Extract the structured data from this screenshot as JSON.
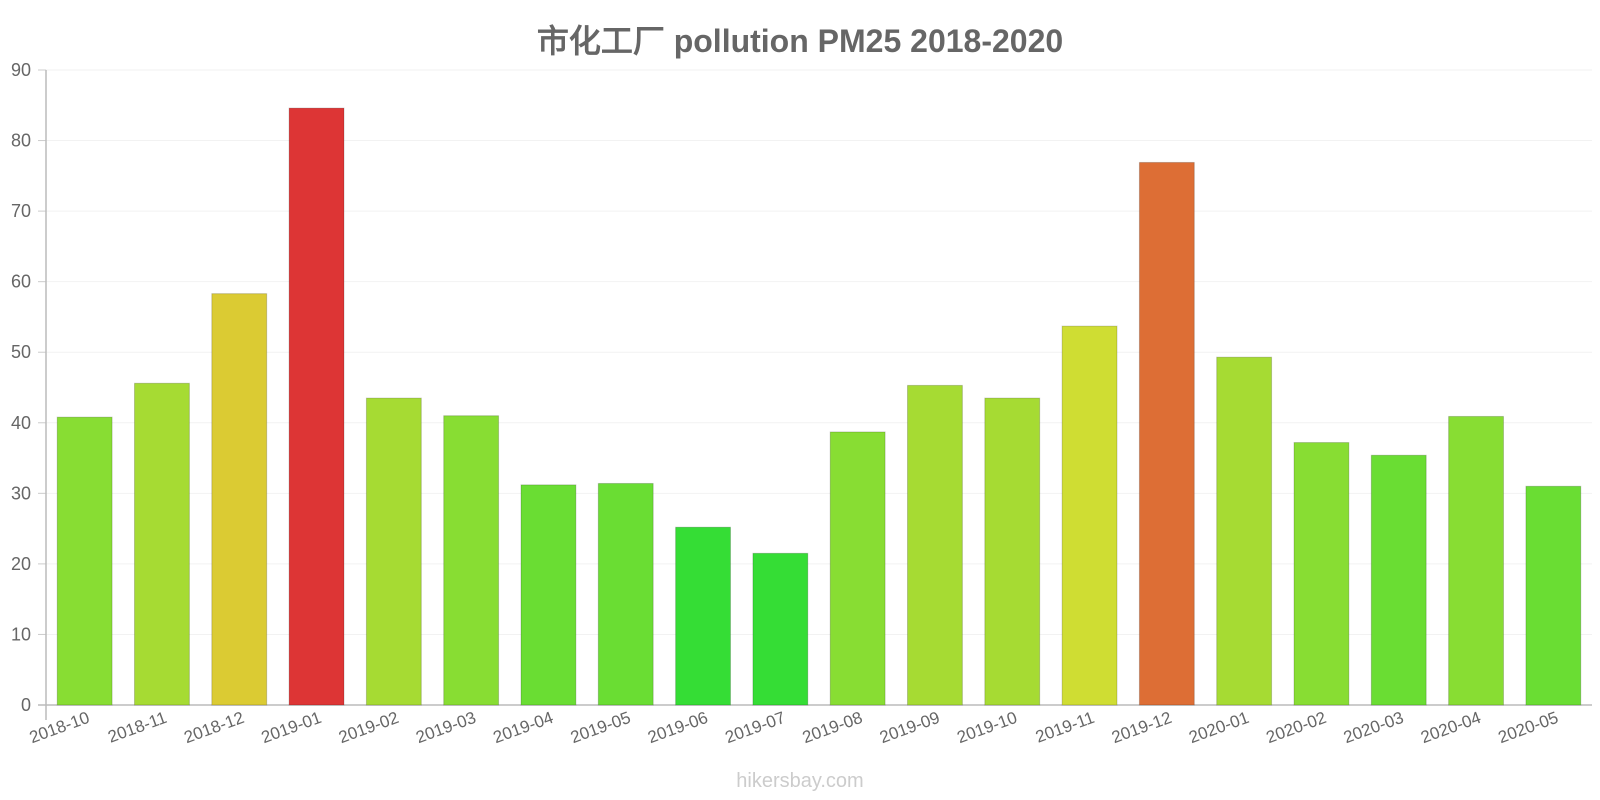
{
  "chart_data": {
    "type": "bar",
    "title": "市化工厂 pollution PM25 2018-2020",
    "xlabel": "",
    "ylabel": "",
    "ylim": [
      0,
      90
    ],
    "yticks": [
      0,
      10,
      20,
      30,
      40,
      50,
      60,
      70,
      80,
      90
    ],
    "grid": true,
    "categories": [
      "2018-10",
      "2018-11",
      "2018-12",
      "2019-01",
      "2019-02",
      "2019-03",
      "2019-04",
      "2019-05",
      "2019-06",
      "2019-07",
      "2019-08",
      "2019-09",
      "2019-10",
      "2019-11",
      "2019-12",
      "2020-01",
      "2020-02",
      "2020-03",
      "2020-04",
      "2020-05"
    ],
    "values": [
      40.8,
      45.6,
      58.3,
      84.6,
      43.5,
      41,
      31.2,
      31.4,
      25.2,
      21.5,
      38.7,
      45.3,
      43.5,
      53.7,
      76.9,
      49.3,
      37.2,
      35.4,
      40.9,
      31
    ],
    "colors": [
      "#88dd33",
      "#a6db33",
      "#dbcb33",
      "#dd3535",
      "#a6db33",
      "#88dd33",
      "#6add33",
      "#6add33",
      "#35dd35",
      "#35dd35",
      "#88dd33",
      "#a6db33",
      "#a6db33",
      "#cfdd33",
      "#dd6e35",
      "#a6db33",
      "#88dd33",
      "#6add33",
      "#88dd33",
      "#6add33"
    ]
  },
  "watermark": "hikersbay.com"
}
